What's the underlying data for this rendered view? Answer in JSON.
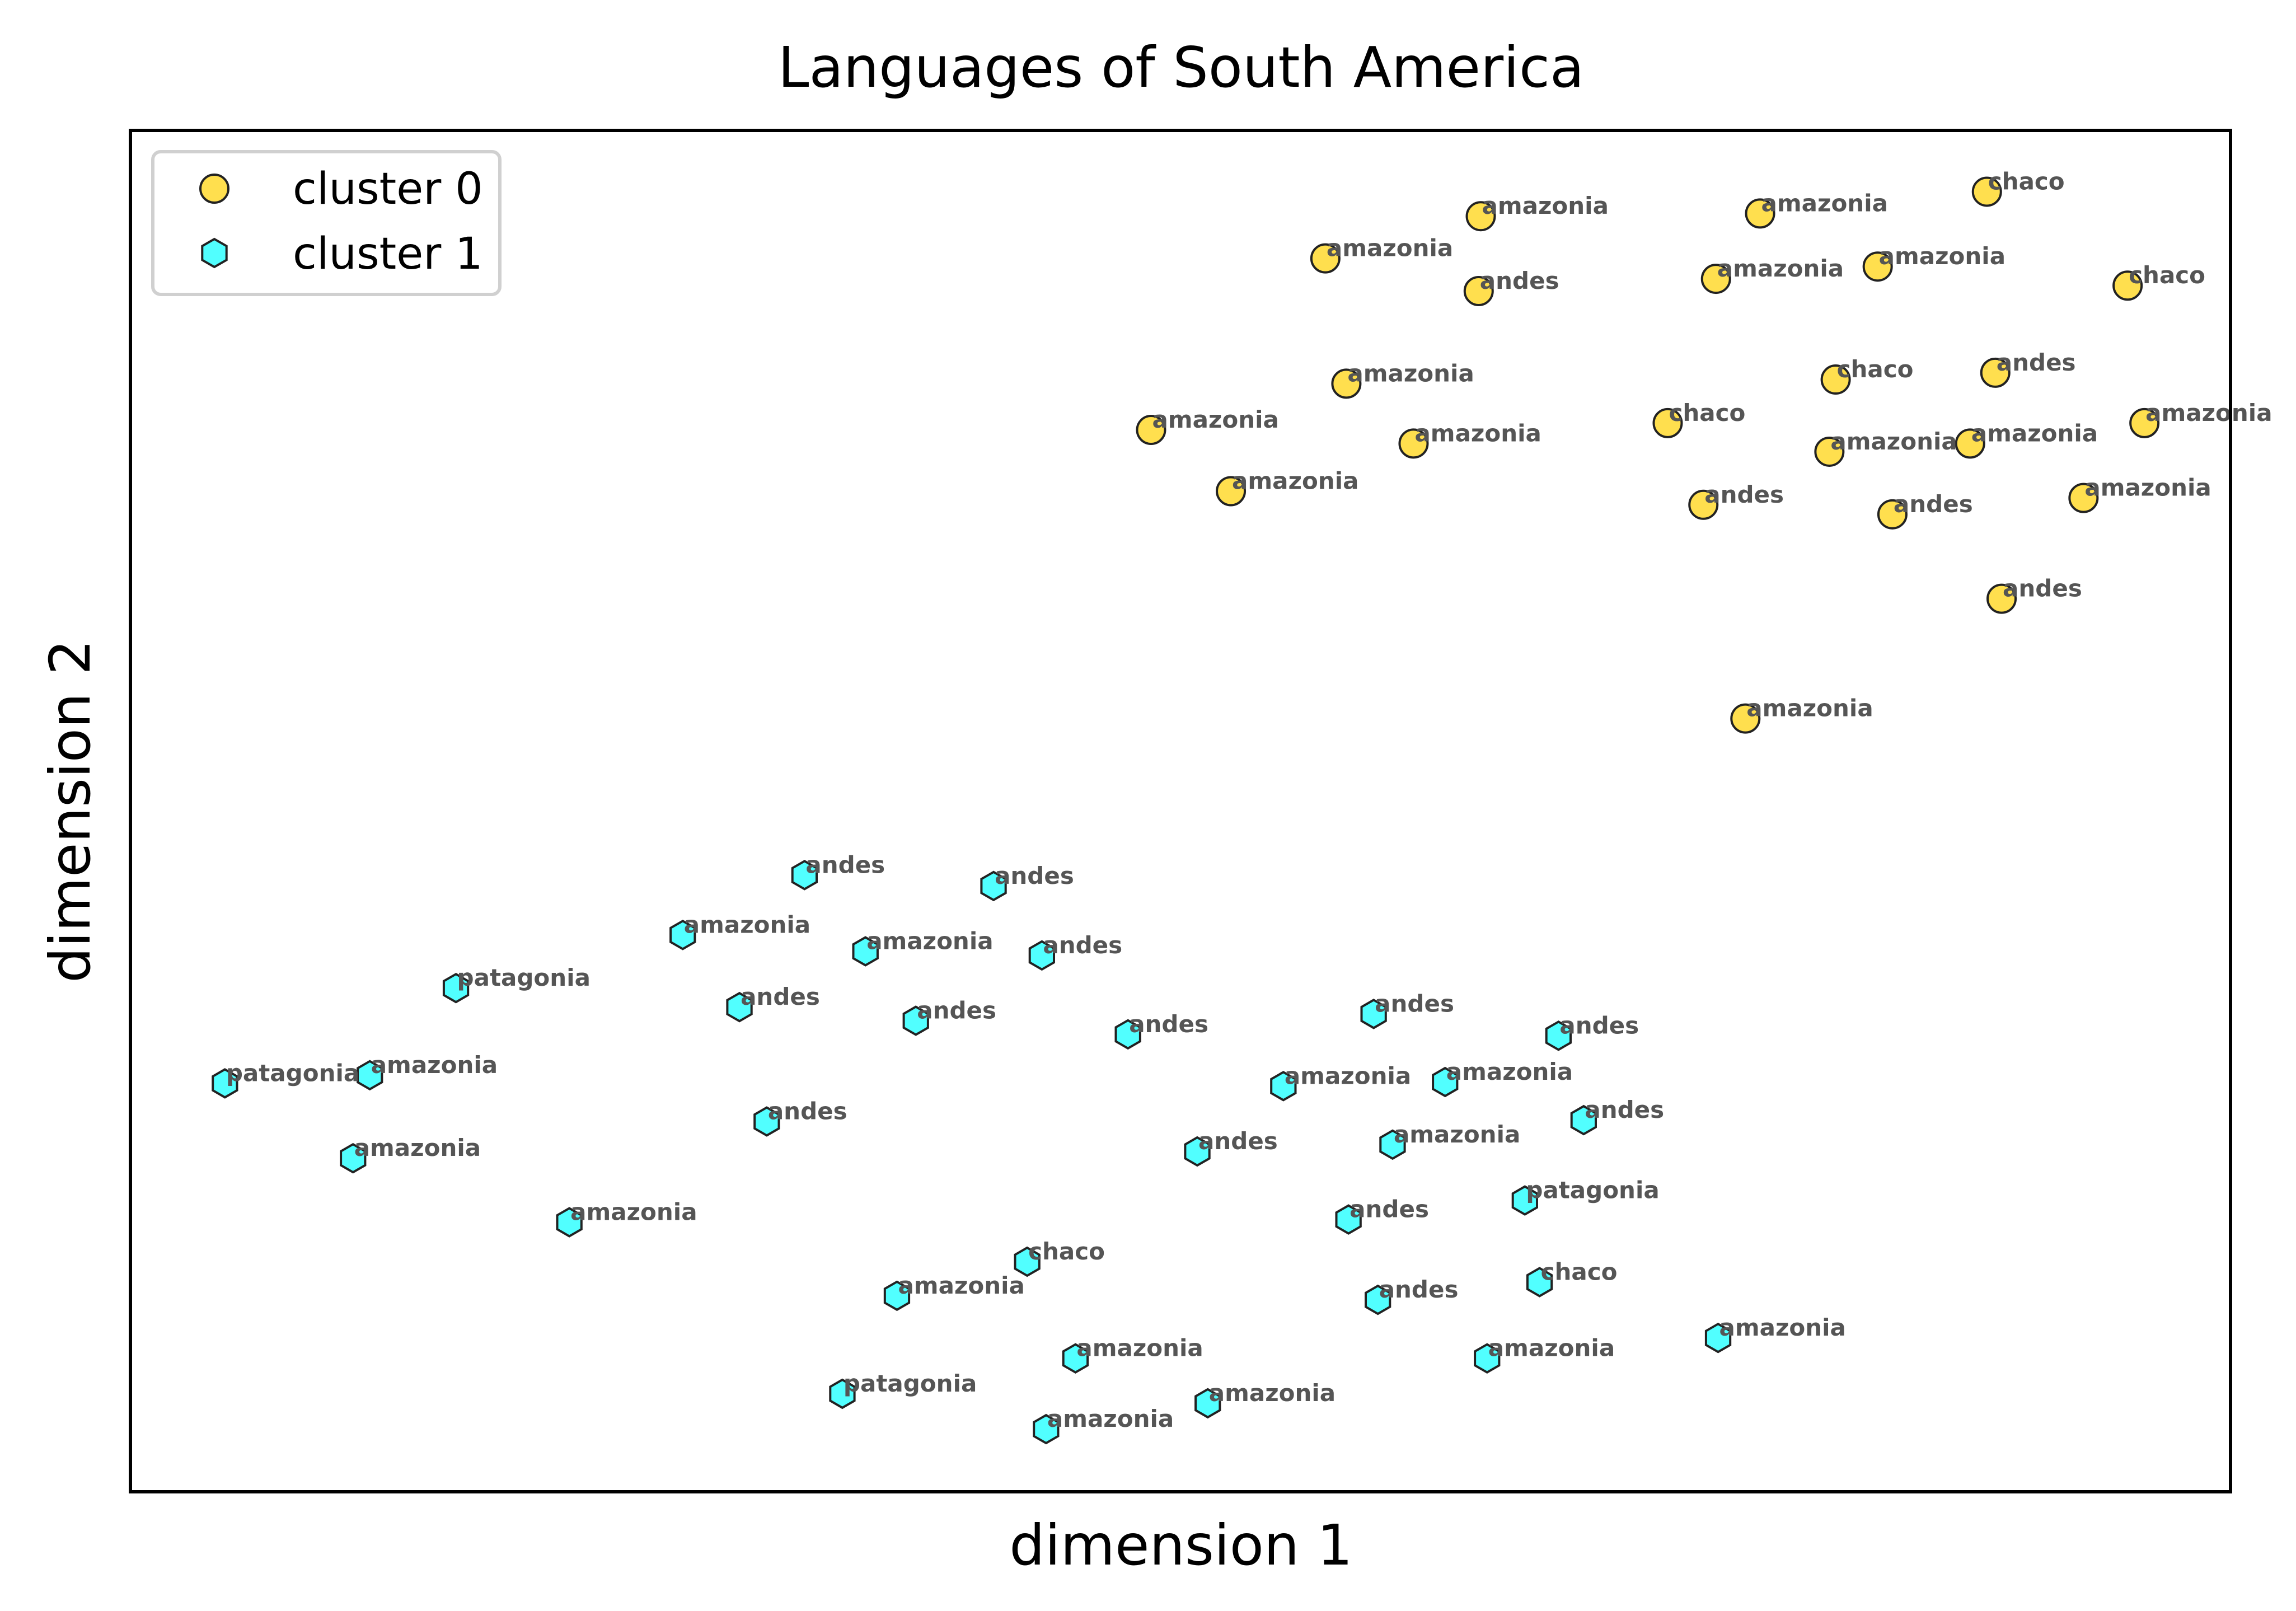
{
  "chart_data": {
    "type": "scatter",
    "title": "Languages of South America",
    "xlabel": "dimension 1",
    "ylabel": "dimension 2",
    "xlim": [
      0,
      100
    ],
    "ylim": [
      0,
      100
    ],
    "ticks_visible": false,
    "grid": false,
    "legend": {
      "placement": "top-left",
      "entries": [
        "cluster 0",
        "cluster 1"
      ]
    },
    "series": [
      {
        "name": "cluster 0",
        "marker": "circle",
        "color": "#FFD92F",
        "points": [
          {
            "x": 64.3,
            "y": 93.7,
            "label": "amazonia"
          },
          {
            "x": 77.6,
            "y": 93.9,
            "label": "amazonia"
          },
          {
            "x": 88.4,
            "y": 95.5,
            "label": "chaco"
          },
          {
            "x": 56.9,
            "y": 90.6,
            "label": "amazonia"
          },
          {
            "x": 64.2,
            "y": 88.2,
            "label": "andes"
          },
          {
            "x": 75.5,
            "y": 89.1,
            "label": "amazonia"
          },
          {
            "x": 83.2,
            "y": 90.0,
            "label": "amazonia"
          },
          {
            "x": 95.1,
            "y": 88.6,
            "label": "chaco"
          },
          {
            "x": 57.9,
            "y": 81.4,
            "label": "amazonia"
          },
          {
            "x": 81.2,
            "y": 81.7,
            "label": "chaco"
          },
          {
            "x": 88.8,
            "y": 82.2,
            "label": "andes"
          },
          {
            "x": 48.6,
            "y": 78.0,
            "label": "amazonia"
          },
          {
            "x": 61.1,
            "y": 77.0,
            "label": "amazonia"
          },
          {
            "x": 73.2,
            "y": 78.5,
            "label": "chaco"
          },
          {
            "x": 80.9,
            "y": 76.4,
            "label": "amazonia"
          },
          {
            "x": 87.6,
            "y": 77.0,
            "label": "amazonia"
          },
          {
            "x": 95.9,
            "y": 78.5,
            "label": "amazonia"
          },
          {
            "x": 52.4,
            "y": 73.5,
            "label": "amazonia"
          },
          {
            "x": 74.9,
            "y": 72.5,
            "label": "andes"
          },
          {
            "x": 83.9,
            "y": 71.8,
            "label": "andes"
          },
          {
            "x": 93.0,
            "y": 73.0,
            "label": "amazonia"
          },
          {
            "x": 89.1,
            "y": 65.6,
            "label": "andes"
          },
          {
            "x": 76.9,
            "y": 56.8,
            "label": "amazonia"
          }
        ]
      },
      {
        "name": "cluster 1",
        "marker": "hexagon",
        "color": "#33FFFF",
        "points": [
          {
            "x": 32.1,
            "y": 45.3,
            "label": "andes"
          },
          {
            "x": 41.1,
            "y": 44.5,
            "label": "andes"
          },
          {
            "x": 26.3,
            "y": 40.9,
            "label": "amazonia"
          },
          {
            "x": 35.0,
            "y": 39.7,
            "label": "amazonia"
          },
          {
            "x": 43.4,
            "y": 39.4,
            "label": "andes"
          },
          {
            "x": 15.5,
            "y": 37.0,
            "label": "patagonia"
          },
          {
            "x": 29.0,
            "y": 35.6,
            "label": "andes"
          },
          {
            "x": 37.4,
            "y": 34.6,
            "label": "andes"
          },
          {
            "x": 47.5,
            "y": 33.6,
            "label": "andes"
          },
          {
            "x": 59.2,
            "y": 35.1,
            "label": "andes"
          },
          {
            "x": 68.0,
            "y": 33.5,
            "label": "andes"
          },
          {
            "x": 4.5,
            "y": 30.0,
            "label": "patagonia"
          },
          {
            "x": 11.4,
            "y": 30.6,
            "label": "amazonia"
          },
          {
            "x": 54.9,
            "y": 29.8,
            "label": "amazonia"
          },
          {
            "x": 62.6,
            "y": 30.1,
            "label": "amazonia"
          },
          {
            "x": 30.3,
            "y": 27.2,
            "label": "andes"
          },
          {
            "x": 69.2,
            "y": 27.3,
            "label": "andes"
          },
          {
            "x": 10.6,
            "y": 24.5,
            "label": "amazonia"
          },
          {
            "x": 50.8,
            "y": 25.0,
            "label": "andes"
          },
          {
            "x": 60.1,
            "y": 25.5,
            "label": "amazonia"
          },
          {
            "x": 20.9,
            "y": 19.8,
            "label": "amazonia"
          },
          {
            "x": 66.4,
            "y": 21.4,
            "label": "patagonia"
          },
          {
            "x": 58.0,
            "y": 20.0,
            "label": "andes"
          },
          {
            "x": 42.7,
            "y": 16.9,
            "label": "chaco"
          },
          {
            "x": 36.5,
            "y": 14.4,
            "label": "amazonia"
          },
          {
            "x": 67.1,
            "y": 15.4,
            "label": "chaco"
          },
          {
            "x": 59.4,
            "y": 14.1,
            "label": "andes"
          },
          {
            "x": 75.6,
            "y": 11.3,
            "label": "amazonia"
          },
          {
            "x": 45.0,
            "y": 9.8,
            "label": "amazonia"
          },
          {
            "x": 64.6,
            "y": 9.8,
            "label": "amazonia"
          },
          {
            "x": 33.9,
            "y": 7.2,
            "label": "patagonia"
          },
          {
            "x": 51.3,
            "y": 6.5,
            "label": "amazonia"
          },
          {
            "x": 43.6,
            "y": 4.6,
            "label": "amazonia"
          }
        ]
      }
    ]
  }
}
